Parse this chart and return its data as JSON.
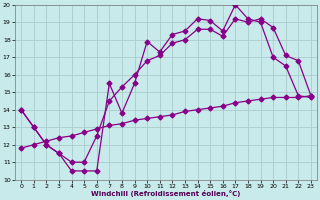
{
  "xlabel": "Windchill (Refroidissement éolien,°C)",
  "xlim": [
    -0.5,
    23.5
  ],
  "ylim": [
    10,
    20
  ],
  "xticks": [
    0,
    1,
    2,
    3,
    4,
    5,
    6,
    7,
    8,
    9,
    10,
    11,
    12,
    13,
    14,
    15,
    16,
    17,
    18,
    19,
    20,
    21,
    22,
    23
  ],
  "yticks": [
    10,
    11,
    12,
    13,
    14,
    15,
    16,
    17,
    18,
    19,
    20
  ],
  "bg_color": "#c8eaea",
  "grid_color": "#aacccc",
  "line_color": "#880088",
  "line1_x": [
    0,
    1,
    2,
    3,
    4,
    5,
    6,
    7,
    8,
    9,
    10,
    11,
    12,
    13,
    14,
    15,
    16,
    17,
    18,
    19,
    20,
    21,
    22,
    23
  ],
  "line1_y": [
    14.0,
    13.0,
    12.0,
    11.5,
    10.5,
    10.5,
    10.5,
    15.5,
    13.8,
    15.5,
    17.9,
    17.3,
    18.3,
    18.5,
    19.2,
    19.1,
    18.5,
    20.0,
    19.2,
    19.0,
    17.0,
    16.5,
    14.8,
    14.7
  ],
  "line2_x": [
    0,
    1,
    2,
    3,
    4,
    5,
    6,
    7,
    8,
    9,
    10,
    11,
    12,
    13,
    14,
    15,
    16,
    17,
    18,
    19,
    20,
    21,
    22,
    23
  ],
  "line2_y": [
    14.0,
    13.0,
    12.0,
    11.5,
    11.0,
    11.0,
    12.5,
    14.5,
    15.3,
    16.0,
    16.8,
    17.1,
    17.8,
    18.0,
    18.6,
    18.6,
    18.2,
    19.2,
    19.0,
    19.2,
    18.7,
    17.1,
    16.8,
    14.8
  ],
  "line3_x": [
    0,
    1,
    2,
    3,
    4,
    5,
    6,
    7,
    8,
    9,
    10,
    11,
    12,
    13,
    14,
    15,
    16,
    17,
    18,
    19,
    20,
    21,
    22,
    23
  ],
  "line3_y": [
    11.8,
    12.0,
    12.2,
    12.4,
    12.5,
    12.7,
    12.9,
    13.1,
    13.2,
    13.4,
    13.5,
    13.6,
    13.7,
    13.9,
    14.0,
    14.1,
    14.2,
    14.4,
    14.5,
    14.6,
    14.7,
    14.7,
    14.7,
    14.8
  ]
}
